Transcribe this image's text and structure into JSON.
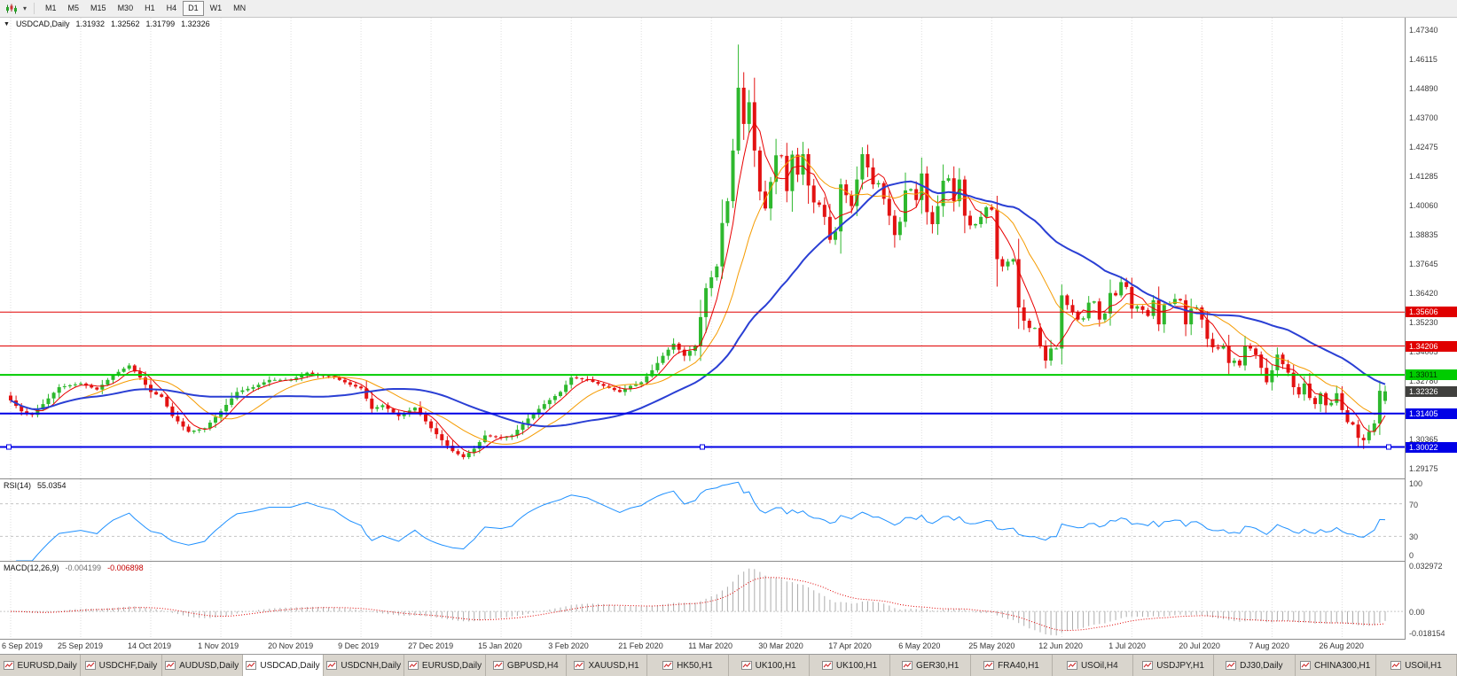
{
  "toolbar": {
    "timeframes": [
      {
        "label": "M1",
        "active": false
      },
      {
        "label": "M5",
        "active": false
      },
      {
        "label": "M15",
        "active": false
      },
      {
        "label": "M30",
        "active": false
      },
      {
        "label": "H1",
        "active": false
      },
      {
        "label": "H4",
        "active": false
      },
      {
        "label": "D1",
        "active": true
      },
      {
        "label": "W1",
        "active": false
      },
      {
        "label": "MN",
        "active": false
      }
    ]
  },
  "main_chart": {
    "symbol": "USDCAD,Daily",
    "open": "1.31932",
    "high": "1.32562",
    "low": "1.31799",
    "close": "1.32326"
  },
  "price_axis": {
    "labels": [
      "1.47340",
      "1.46115",
      "1.44890",
      "1.43700",
      "1.42475",
      "1.41285",
      "1.40060",
      "1.38835",
      "1.37645",
      "1.36420",
      "1.35230",
      "1.34005",
      "1.32780",
      "1.30365",
      "1.29175"
    ],
    "current": {
      "label": "1.32326",
      "bg": "#40403E",
      "fg": "#FFFFFF"
    }
  },
  "rsi_panel": {
    "title": "RSI(14)",
    "value": "55.0354",
    "axis_labels": [
      "100",
      "70",
      "30",
      "0"
    ]
  },
  "macd_panel": {
    "title": "MACD(12,26,9)",
    "main_value": "-0.004199",
    "signal_value": "-0.006898",
    "axis_labels": [
      "0.032972",
      "0.00",
      "-0.018154"
    ]
  },
  "date_axis": {
    "labels": [
      "6 Sep 2019",
      "25 Sep 2019",
      "14 Oct 2019",
      "1 Nov 2019",
      "20 Nov 2019",
      "9 Dec 2019",
      "27 Dec 2019",
      "15 Jan 2020",
      "3 Feb 2020",
      "21 Feb 2020",
      "11 Mar 2020",
      "30 Mar 2020",
      "17 Apr 2020",
      "6 May 2020",
      "25 May 2020",
      "12 Jun 2020",
      "1 Jul 2020",
      "20 Jul 2020",
      "7 Aug 2020",
      "26 Aug 2020"
    ]
  },
  "tabs": [
    {
      "label": "EURUSD,Daily",
      "active": false
    },
    {
      "label": "USDCHF,Daily",
      "active": false
    },
    {
      "label": "AUDUSD,Daily",
      "active": false
    },
    {
      "label": "USDCAD,Daily",
      "active": true
    },
    {
      "label": "USDCNH,Daily",
      "active": false
    },
    {
      "label": "EURUSD,Daily",
      "active": false
    },
    {
      "label": "GBPUSD,H4",
      "active": false
    },
    {
      "label": "XAUUSD,H1",
      "active": false
    },
    {
      "label": "HK50,H1",
      "active": false
    },
    {
      "label": "UK100,H1",
      "active": false
    },
    {
      "label": "UK100,H1",
      "active": false
    },
    {
      "label": "GER30,H1",
      "active": false
    },
    {
      "label": "FRA40,H1",
      "active": false
    },
    {
      "label": "USOil,H4",
      "active": false
    },
    {
      "label": "USDJPY,H1",
      "active": false
    },
    {
      "label": "DJ30,Daily",
      "active": false
    },
    {
      "label": "CHINA300,H1",
      "active": false
    },
    {
      "label": "USOil,H1",
      "active": false
    }
  ],
  "chart_data": {
    "type": "candlestick",
    "symbol": "USDCAD",
    "timeframe": "Daily",
    "num_candles": 256,
    "first_open": 1.3215,
    "seed": 11,
    "y_range": [
      1.2872,
      1.478
    ],
    "up_color": "#2EB82E",
    "down_color": "#E31212",
    "grid_color": "#DEDEDE",
    "tick_indices": [
      0,
      13,
      26,
      39,
      52,
      65,
      78,
      91,
      104,
      117,
      130,
      143,
      156,
      169,
      182,
      195,
      208,
      221,
      234,
      247
    ],
    "close_anchors": [
      [
        0,
        1.3195
      ],
      [
        2,
        1.315
      ],
      [
        4,
        1.3135
      ],
      [
        6,
        1.318
      ],
      [
        9,
        1.325
      ],
      [
        13,
        1.3265
      ],
      [
        16,
        1.324
      ],
      [
        19,
        1.33
      ],
      [
        22,
        1.334
      ],
      [
        24,
        1.329
      ],
      [
        26,
        1.323
      ],
      [
        28,
        1.321
      ],
      [
        30,
        1.313
      ],
      [
        33,
        1.3065
      ],
      [
        36,
        1.308
      ],
      [
        39,
        1.315
      ],
      [
        42,
        1.323
      ],
      [
        45,
        1.325
      ],
      [
        48,
        1.328
      ],
      [
        52,
        1.328
      ],
      [
        55,
        1.331
      ],
      [
        57,
        1.33
      ],
      [
        60,
        1.329
      ],
      [
        63,
        1.326
      ],
      [
        65,
        1.3245
      ],
      [
        67,
        1.316
      ],
      [
        69,
        1.3175
      ],
      [
        72,
        1.313
      ],
      [
        75,
        1.3165
      ],
      [
        78,
        1.308
      ],
      [
        80,
        1.303
      ],
      [
        82,
        1.2985
      ],
      [
        84,
        1.296
      ],
      [
        86,
        1.2995
      ],
      [
        88,
        1.305
      ],
      [
        91,
        1.304
      ],
      [
        93,
        1.305
      ],
      [
        96,
        1.312
      ],
      [
        99,
        1.318
      ],
      [
        102,
        1.323
      ],
      [
        104,
        1.329
      ],
      [
        107,
        1.328
      ],
      [
        110,
        1.3255
      ],
      [
        113,
        1.323
      ],
      [
        115,
        1.3255
      ],
      [
        117,
        1.327
      ],
      [
        119,
        1.332
      ],
      [
        121,
        1.338
      ],
      [
        123,
        1.343
      ],
      [
        125,
        1.338
      ],
      [
        127,
        1.342
      ],
      [
        129,
        1.366
      ],
      [
        131,
        1.375
      ],
      [
        132,
        1.393
      ],
      [
        133,
        1.402
      ],
      [
        134,
        1.423
      ],
      [
        135,
        1.449
      ],
      [
        136,
        1.434
      ],
      [
        137,
        1.443
      ],
      [
        138,
        1.423
      ],
      [
        139,
        1.406
      ],
      [
        140,
        1.399
      ],
      [
        141,
        1.41
      ],
      [
        142,
        1.421
      ],
      [
        143,
        1.4208
      ],
      [
        144,
        1.4062
      ],
      [
        145,
        1.4213
      ],
      [
        146,
        1.413
      ],
      [
        147,
        1.4215
      ],
      [
        148,
        1.4085
      ],
      [
        149,
        1.4015
      ],
      [
        150,
        1.4005
      ],
      [
        151,
        1.3955
      ],
      [
        152,
        1.386
      ],
      [
        153,
        1.3895
      ],
      [
        154,
        1.409
      ],
      [
        155,
        1.4045
      ],
      [
        156,
        1.4
      ],
      [
        157,
        1.411
      ],
      [
        158,
        1.4215
      ],
      [
        159,
        1.416
      ],
      [
        160,
        1.409
      ],
      [
        161,
        1.4095
      ],
      [
        162,
        1.403
      ],
      [
        163,
        1.396
      ],
      [
        164,
        1.388
      ],
      [
        165,
        1.3935
      ],
      [
        166,
        1.4065
      ],
      [
        167,
        1.407
      ],
      [
        168,
        1.4025
      ],
      [
        169,
        1.4135
      ],
      [
        170,
        1.3975
      ],
      [
        171,
        1.3925
      ],
      [
        172,
        1.4
      ],
      [
        173,
        1.4105
      ],
      [
        174,
        1.4115
      ],
      [
        175,
        1.402
      ],
      [
        176,
        1.411
      ],
      [
        177,
        1.396
      ],
      [
        178,
        1.392
      ],
      [
        179,
        1.3925
      ],
      [
        180,
        1.3955
      ],
      [
        181,
        1.3995
      ],
      [
        182,
        1.3985
      ],
      [
        183,
        1.378
      ],
      [
        184,
        1.375
      ],
      [
        185,
        1.377
      ],
      [
        186,
        1.378
      ],
      [
        187,
        1.358
      ],
      [
        188,
        1.3525
      ],
      [
        189,
        1.3495
      ],
      [
        190,
        1.3495
      ],
      [
        191,
        1.342
      ],
      [
        192,
        1.336
      ],
      [
        193,
        1.341
      ],
      [
        194,
        1.341
      ],
      [
        195,
        1.363
      ],
      [
        196,
        1.359
      ],
      [
        197,
        1.356
      ],
      [
        198,
        1.353
      ],
      [
        199,
        1.3535
      ],
      [
        200,
        1.36
      ],
      [
        201,
        1.3605
      ],
      [
        202,
        1.353
      ],
      [
        203,
        1.3555
      ],
      [
        204,
        1.364
      ],
      [
        205,
        1.363
      ],
      [
        206,
        1.3685
      ],
      [
        207,
        1.3665
      ],
      [
        208,
        1.3575
      ],
      [
        209,
        1.3585
      ],
      [
        210,
        1.357
      ],
      [
        211,
        1.3545
      ],
      [
        212,
        1.361
      ],
      [
        213,
        1.351
      ],
      [
        214,
        1.359
      ],
      [
        215,
        1.3595
      ],
      [
        216,
        1.3615
      ],
      [
        217,
        1.361
      ],
      [
        218,
        1.351
      ],
      [
        219,
        1.3575
      ],
      [
        220,
        1.358
      ],
      [
        221,
        1.353
      ],
      [
        222,
        1.345
      ],
      [
        223,
        1.3415
      ],
      [
        224,
        1.341
      ],
      [
        225,
        1.342
      ],
      [
        226,
        1.335
      ],
      [
        227,
        1.336
      ],
      [
        228,
        1.334
      ],
      [
        229,
        1.342
      ],
      [
        230,
        1.341
      ],
      [
        231,
        1.3385
      ],
      [
        232,
        1.333
      ],
      [
        233,
        1.327
      ],
      [
        234,
        1.332
      ],
      [
        235,
        1.3385
      ],
      [
        236,
        1.3345
      ],
      [
        237,
        1.331
      ],
      [
        238,
        1.325
      ],
      [
        239,
        1.322
      ],
      [
        240,
        1.3265
      ],
      [
        241,
        1.3205
      ],
      [
        242,
        1.318
      ],
      [
        243,
        1.3225
      ],
      [
        244,
        1.3175
      ],
      [
        245,
        1.3185
      ],
      [
        246,
        1.3225
      ],
      [
        247,
        1.3155
      ],
      [
        248,
        1.3105
      ],
      [
        249,
        1.3095
      ],
      [
        250,
        1.304
      ],
      [
        251,
        1.303
      ],
      [
        252,
        1.3065
      ],
      [
        253,
        1.31
      ],
      [
        254,
        1.3235
      ],
      [
        255,
        1.32326
      ]
    ],
    "wick_overrides": [
      [
        135,
        1.4669,
        1.4215
      ],
      [
        84,
        null,
        1.2951
      ],
      [
        251,
        null,
        1.2994
      ]
    ],
    "last_candle": {
      "open": 1.31932,
      "high": 1.32562,
      "low": 1.31799,
      "close": 1.32326
    },
    "moving_averages": [
      {
        "period": 5,
        "color": "#E80000",
        "width": 1
      },
      {
        "period": 13,
        "color": "#F59B00",
        "width": 1
      },
      {
        "period": 34,
        "color": "#2A3FD4",
        "width": 2
      }
    ],
    "hlines": [
      {
        "price": 1.35606,
        "label": "1.35606",
        "color": "#E00000",
        "stroke_width": 1,
        "label_fg": "#FFFFFF",
        "selected": false
      },
      {
        "price": 1.34206,
        "label": "1.34206",
        "color": "#E00000",
        "stroke_width": 1,
        "label_fg": "#FFFFFF",
        "selected": false
      },
      {
        "price": 1.33011,
        "label": "1.33011",
        "color": "#00CC00",
        "stroke_width": 2,
        "label_fg": "#003300",
        "selected": false
      },
      {
        "price": 1.31405,
        "label": "1.31405",
        "color": "#0000E6",
        "stroke_width": 2,
        "label_fg": "#FFFFFF",
        "selected": false
      },
      {
        "price": 1.30022,
        "label": "1.30022",
        "color": "#0000E6",
        "stroke_width": 2,
        "label_fg": "#FFFFFF",
        "selected": true
      }
    ],
    "rsi": {
      "period": 14,
      "current": 55.0354,
      "levels": [
        70,
        30
      ],
      "range": [
        0,
        100
      ],
      "color": "#1E90FF"
    },
    "macd": {
      "fast": 12,
      "slow": 26,
      "signal_period": 9,
      "current_main": -0.004199,
      "current_signal": -0.006898,
      "range": [
        -0.018154,
        0.032972
      ],
      "histogram_color": "#ADADAD",
      "signal_color": "#E00000"
    }
  }
}
